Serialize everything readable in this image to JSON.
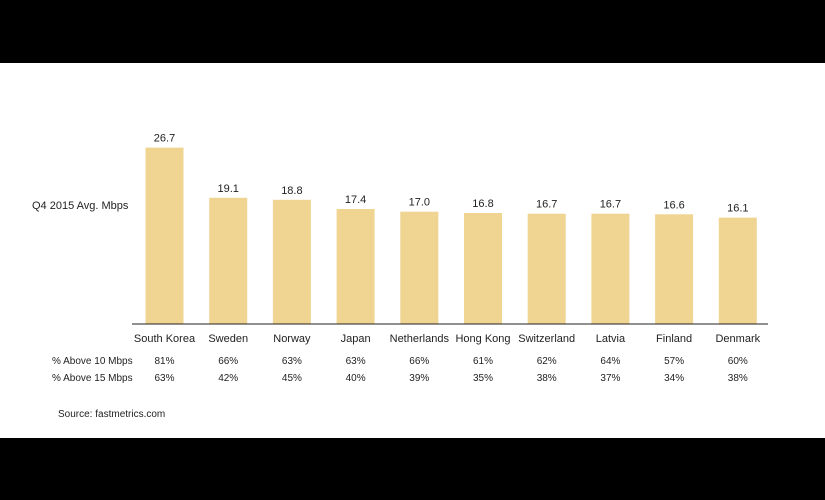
{
  "chart_data": {
    "type": "bar",
    "ylabel": "Q4 2015 Avg. Mbps",
    "categories": [
      "South Korea",
      "Sweden",
      "Norway",
      "Japan",
      "Netherlands",
      "Hong Kong",
      "Switzerland",
      "Latvia",
      "Finland",
      "Denmark"
    ],
    "values": [
      26.7,
      19.1,
      18.8,
      17.4,
      17.0,
      16.8,
      16.7,
      16.7,
      16.6,
      16.1
    ],
    "value_labels": [
      "26.7",
      "19.1",
      "18.8",
      "17.4",
      "17.0",
      "16.8",
      "16.7",
      "16.7",
      "16.6",
      "16.1"
    ],
    "ylim": [
      0,
      28
    ],
    "bar_color": "#f0d492",
    "grid": false,
    "table": {
      "rows": [
        {
          "label": "% Above 10 Mbps",
          "values": [
            "81%",
            "66%",
            "63%",
            "63%",
            "66%",
            "61%",
            "62%",
            "64%",
            "57%",
            "60%"
          ]
        },
        {
          "label": "% Above 15 Mbps",
          "values": [
            "63%",
            "42%",
            "45%",
            "40%",
            "39%",
            "35%",
            "38%",
            "37%",
            "34%",
            "38%"
          ]
        }
      ]
    },
    "source": "Source: fastmetrics.com"
  }
}
